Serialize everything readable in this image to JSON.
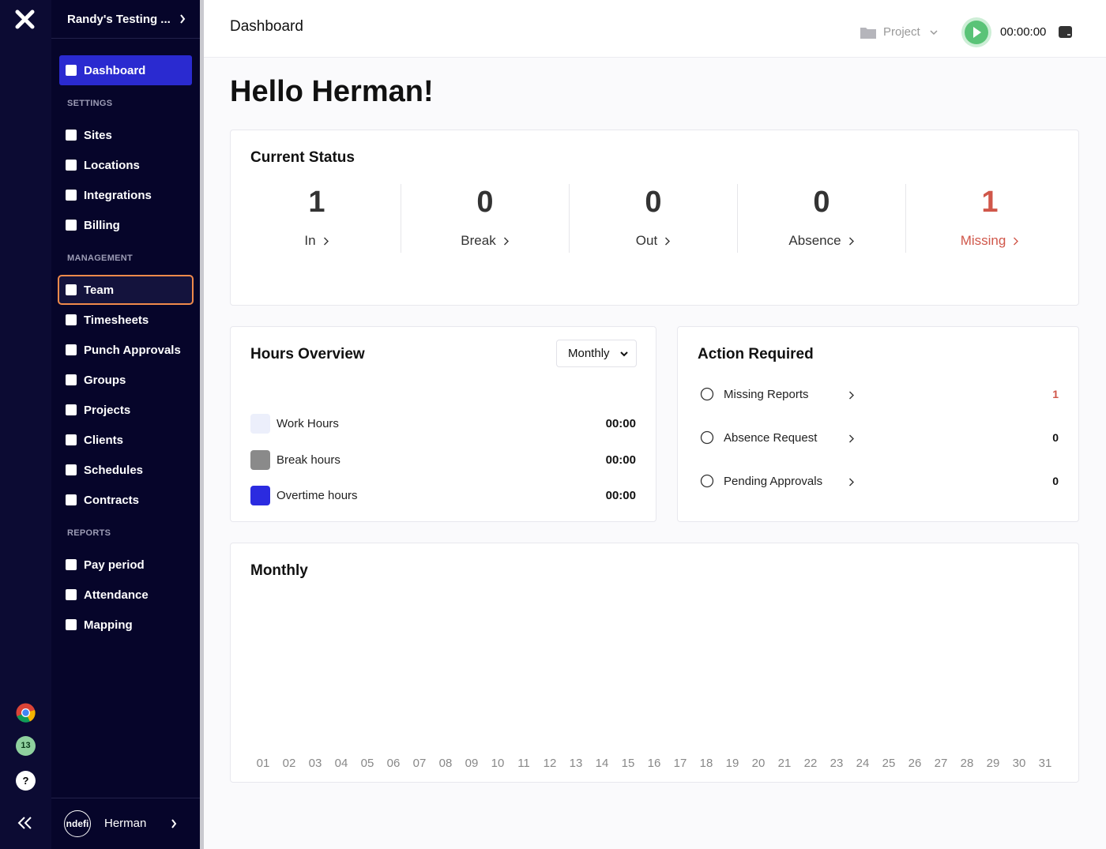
{
  "rail": {
    "badge": "13",
    "help": "?"
  },
  "sidebar": {
    "workspace": "Randy's Testing ...",
    "active": "Dashboard",
    "sections": [
      {
        "title": "SETTINGS",
        "items": [
          "Sites",
          "Locations",
          "Integrations",
          "Billing"
        ]
      },
      {
        "title": "MANAGEMENT",
        "items": [
          "Team",
          "Timesheets",
          "Punch Approvals",
          "Groups",
          "Projects",
          "Clients",
          "Schedules",
          "Contracts"
        ]
      },
      {
        "title": "REPORTS",
        "items": [
          "Pay period",
          "Attendance",
          "Mapping"
        ]
      }
    ],
    "avatar": "ndefi",
    "user": "Herman"
  },
  "header": {
    "title": "Dashboard",
    "project": "Project",
    "timer": "00:00:00"
  },
  "greeting": "Hello Herman!",
  "status": {
    "title": "Current Status",
    "items": [
      {
        "value": 1,
        "label": "In"
      },
      {
        "value": 0,
        "label": "Break"
      },
      {
        "value": 0,
        "label": "Out"
      },
      {
        "value": 0,
        "label": "Absence"
      },
      {
        "value": 1,
        "label": "Missing",
        "color": "#d0574a"
      }
    ]
  },
  "hours": {
    "title": "Hours Overview",
    "period": "Monthly",
    "rows": [
      {
        "label": "Work Hours",
        "value": "00:00",
        "color": "#eceffb"
      },
      {
        "label": "Break hours",
        "value": "00:00",
        "color": "#8a8a8a"
      },
      {
        "label": "Overtime hours",
        "value": "00:00",
        "color": "#2b2be0"
      }
    ]
  },
  "actions": {
    "title": "Action Required",
    "items": [
      {
        "label": "Missing Reports",
        "count": 1,
        "color": "#d0574a"
      },
      {
        "label": "Absence Request",
        "count": 0
      },
      {
        "label": "Pending Approvals",
        "count": 0
      }
    ]
  },
  "monthly": {
    "title": "Monthly",
    "days": [
      "01",
      "02",
      "03",
      "04",
      "05",
      "06",
      "07",
      "08",
      "09",
      "10",
      "11",
      "12",
      "13",
      "14",
      "15",
      "16",
      "17",
      "18",
      "19",
      "20",
      "21",
      "22",
      "23",
      "24",
      "25",
      "26",
      "27",
      "28",
      "29",
      "30",
      "31"
    ]
  }
}
